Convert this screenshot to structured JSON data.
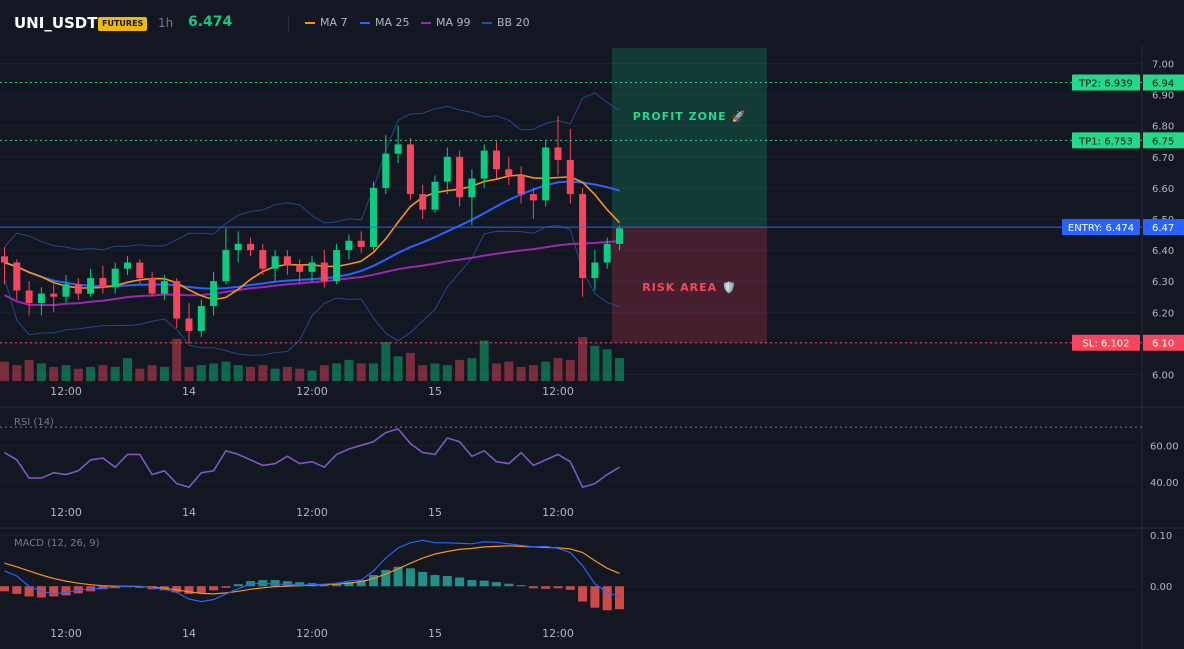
{
  "header": {
    "symbol": "UNI_USDT",
    "badge": "FUTURES",
    "timeframe": "1h",
    "last_price": "6.474",
    "legend": [
      {
        "label": "MA 7",
        "color": "#f7931a"
      },
      {
        "label": "MA 25",
        "color": "#2962ff"
      },
      {
        "label": "MA 99",
        "color": "#9c27b0"
      },
      {
        "label": "BB 20",
        "color": "#2b4a9a"
      }
    ]
  },
  "chart_data": {
    "type": "candlestick",
    "price_axis": {
      "min": 5.95,
      "max": 7.05,
      "ticks": [
        "6.00",
        "6.10",
        "6.20",
        "6.30",
        "6.40",
        "6.50",
        "6.60",
        "6.70",
        "6.80",
        "6.90",
        "7.00"
      ]
    },
    "time_axis": {
      "ticks": [
        "12:00",
        "14",
        "12:00",
        "15",
        "12:00"
      ],
      "index": [
        5,
        15,
        25,
        35,
        45
      ]
    },
    "candles": [
      [
        6.38,
        6.41,
        6.29,
        6.36
      ],
      [
        6.36,
        6.37,
        6.24,
        6.27
      ],
      [
        6.27,
        6.3,
        6.19,
        6.23
      ],
      [
        6.23,
        6.28,
        6.19,
        6.26
      ],
      [
        6.26,
        6.29,
        6.2,
        6.25
      ],
      [
        6.25,
        6.32,
        6.23,
        6.29
      ],
      [
        6.29,
        6.31,
        6.24,
        6.26
      ],
      [
        6.26,
        6.34,
        6.25,
        6.31
      ],
      [
        6.31,
        6.35,
        6.26,
        6.28
      ],
      [
        6.28,
        6.36,
        6.26,
        6.34
      ],
      [
        6.34,
        6.38,
        6.32,
        6.36
      ],
      [
        6.36,
        6.37,
        6.29,
        6.31
      ],
      [
        6.31,
        6.33,
        6.25,
        6.26
      ],
      [
        6.26,
        6.32,
        6.24,
        6.3
      ],
      [
        6.3,
        6.31,
        6.15,
        6.18
      ],
      [
        6.18,
        6.23,
        6.1,
        6.14
      ],
      [
        6.14,
        6.24,
        6.12,
        6.22
      ],
      [
        6.22,
        6.33,
        6.19,
        6.3
      ],
      [
        6.3,
        6.47,
        6.29,
        6.4
      ],
      [
        6.4,
        6.46,
        6.36,
        6.42
      ],
      [
        6.42,
        6.44,
        6.38,
        6.4
      ],
      [
        6.4,
        6.42,
        6.32,
        6.34
      ],
      [
        6.34,
        6.4,
        6.3,
        6.38
      ],
      [
        6.38,
        6.4,
        6.32,
        6.35
      ],
      [
        6.35,
        6.37,
        6.29,
        6.33
      ],
      [
        6.33,
        6.38,
        6.3,
        6.36
      ],
      [
        6.36,
        6.4,
        6.28,
        6.3
      ],
      [
        6.3,
        6.42,
        6.29,
        6.4
      ],
      [
        6.4,
        6.45,
        6.37,
        6.43
      ],
      [
        6.43,
        6.46,
        6.39,
        6.41
      ],
      [
        6.41,
        6.62,
        6.4,
        6.6
      ],
      [
        6.6,
        6.77,
        6.58,
        6.71
      ],
      [
        6.71,
        6.8,
        6.68,
        6.74
      ],
      [
        6.74,
        6.76,
        6.56,
        6.58
      ],
      [
        6.58,
        6.61,
        6.5,
        6.53
      ],
      [
        6.53,
        6.64,
        6.52,
        6.62
      ],
      [
        6.62,
        6.73,
        6.58,
        6.7
      ],
      [
        6.7,
        6.72,
        6.54,
        6.57
      ],
      [
        6.57,
        6.66,
        6.48,
        6.63
      ],
      [
        6.63,
        6.74,
        6.6,
        6.72
      ],
      [
        6.72,
        6.75,
        6.63,
        6.66
      ],
      [
        6.66,
        6.7,
        6.61,
        6.64
      ],
      [
        6.64,
        6.67,
        6.55,
        6.58
      ],
      [
        6.58,
        6.6,
        6.5,
        6.56
      ],
      [
        6.56,
        6.75,
        6.54,
        6.73
      ],
      [
        6.73,
        6.83,
        6.64,
        6.69
      ],
      [
        6.69,
        6.79,
        6.55,
        6.58
      ],
      [
        6.58,
        6.6,
        6.25,
        6.31
      ],
      [
        6.31,
        6.4,
        6.27,
        6.36
      ],
      [
        6.36,
        6.44,
        6.34,
        6.42
      ],
      [
        6.42,
        6.48,
        6.4,
        6.47
      ]
    ],
    "volume": [
      1.1,
      0.9,
      1.2,
      1.0,
      0.8,
      0.9,
      0.7,
      0.8,
      0.9,
      0.8,
      1.3,
      0.7,
      0.9,
      0.8,
      2.4,
      0.8,
      0.9,
      1.0,
      1.1,
      0.9,
      0.8,
      0.9,
      0.7,
      0.8,
      0.7,
      0.6,
      0.9,
      1.0,
      1.2,
      1.0,
      1.0,
      2.2,
      1.4,
      1.6,
      0.9,
      1.0,
      0.9,
      1.2,
      1.3,
      2.3,
      1.0,
      1.1,
      0.8,
      0.9,
      1.1,
      1.3,
      1.2,
      2.5,
      2.0,
      1.8,
      1.3
    ],
    "levels": [
      {
        "name": "TP2",
        "label": "TP2: 6.939",
        "axis_value": "6.94",
        "value": 6.939,
        "color": "#26d98a"
      },
      {
        "name": "TP1",
        "label": "TP1: 6.753",
        "axis_value": "6.75",
        "value": 6.753,
        "color": "#26d98a"
      },
      {
        "name": "ENTRY",
        "label": "ENTRY: 6.474",
        "axis_value": "6.47",
        "value": 6.474,
        "color": "#2962ff"
      },
      {
        "name": "SL",
        "label": "SL: 6.102",
        "axis_value": "6.10",
        "value": 6.102,
        "color": "#f6465d"
      }
    ],
    "zones": {
      "profit_label": "PROFIT ZONE 🚀",
      "risk_label": "RISK AREA 🛡️"
    },
    "rsi": {
      "label": "RSI (14)",
      "ticks": [
        "60.00",
        "40.00"
      ],
      "min": 30,
      "max": 75,
      "overbought": 70,
      "values": [
        56,
        52,
        42,
        42,
        45,
        44,
        46,
        52,
        53,
        48,
        55,
        55,
        44,
        46,
        39,
        37,
        45,
        46,
        57,
        55,
        52,
        49,
        50,
        54,
        50,
        51,
        48,
        55,
        58,
        60,
        62,
        67,
        69,
        61,
        56,
        55,
        64,
        62,
        54,
        57,
        51,
        50,
        56,
        49,
        52,
        55,
        51,
        37,
        39,
        44,
        48
      ]
    },
    "macd": {
      "label": "MACD (12, 26, 9)",
      "ticks": [
        "0.10",
        "0.00"
      ],
      "min": -0.07,
      "max": 0.11,
      "macd": [
        0.03,
        0.02,
        0.0,
        -0.01,
        -0.015,
        -0.012,
        -0.008,
        -0.005,
        -0.004,
        -0.002,
        0.0,
        0.0,
        -0.003,
        -0.006,
        -0.012,
        -0.025,
        -0.03,
        -0.026,
        -0.015,
        -0.005,
        0.005,
        0.006,
        0.004,
        0.004,
        0.002,
        0.003,
        0.004,
        0.006,
        0.01,
        0.012,
        0.03,
        0.055,
        0.075,
        0.085,
        0.09,
        0.085,
        0.085,
        0.084,
        0.083,
        0.087,
        0.086,
        0.083,
        0.08,
        0.077,
        0.078,
        0.074,
        0.066,
        0.04,
        0.005,
        -0.012,
        -0.02
      ],
      "signal": [
        0.045,
        0.038,
        0.03,
        0.022,
        0.015,
        0.01,
        0.006,
        0.003,
        0.001,
        0.0,
        0.0,
        -0.001,
        -0.002,
        -0.004,
        -0.007,
        -0.011,
        -0.014,
        -0.015,
        -0.013,
        -0.01,
        -0.006,
        -0.003,
        -0.001,
        0.0,
        0.001,
        0.002,
        0.003,
        0.004,
        0.006,
        0.009,
        0.015,
        0.024,
        0.034,
        0.045,
        0.055,
        0.063,
        0.068,
        0.072,
        0.074,
        0.077,
        0.078,
        0.079,
        0.078,
        0.077,
        0.076,
        0.075,
        0.073,
        0.066,
        0.05,
        0.035,
        0.025
      ],
      "hist": [
        -0.01,
        -0.015,
        -0.02,
        -0.022,
        -0.02,
        -0.018,
        -0.014,
        -0.01,
        -0.006,
        -0.004,
        -0.002,
        -0.003,
        -0.006,
        -0.008,
        -0.012,
        -0.015,
        -0.013,
        -0.008,
        -0.003,
        0.004,
        0.01,
        0.012,
        0.012,
        0.01,
        0.008,
        0.006,
        0.004,
        0.005,
        0.008,
        0.012,
        0.022,
        0.032,
        0.038,
        0.035,
        0.028,
        0.022,
        0.02,
        0.017,
        0.012,
        0.011,
        0.008,
        0.005,
        0.002,
        -0.004,
        -0.005,
        -0.004,
        -0.007,
        -0.03,
        -0.042,
        -0.047,
        -0.045
      ]
    }
  }
}
